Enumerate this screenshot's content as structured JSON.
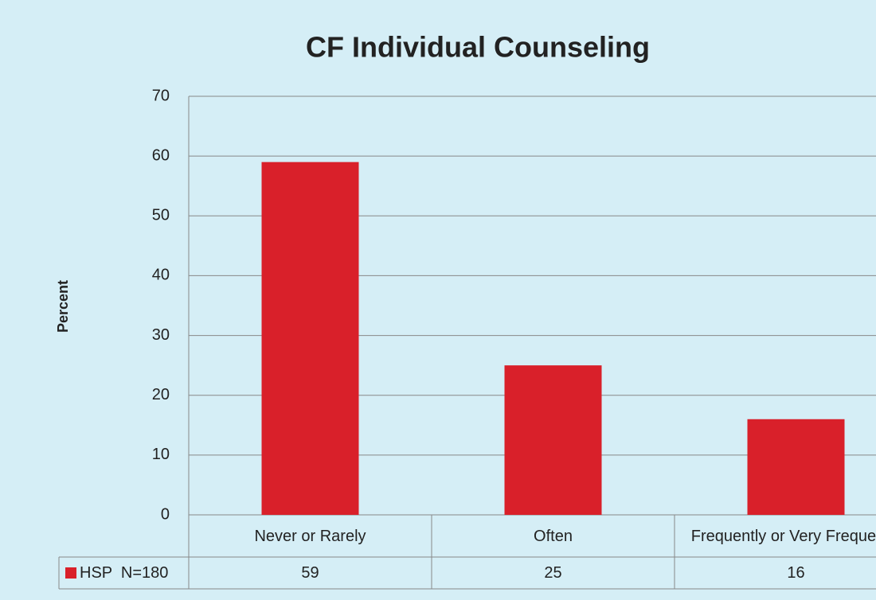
{
  "chart_data": {
    "type": "bar",
    "title": "CF Individual Counseling",
    "y_label": "Percent",
    "categories": [
      "Never or Rarely",
      "Often",
      "Frequently or Very Frequently"
    ],
    "series": [
      {
        "name": "HSP  N=180",
        "color": "#d9202a",
        "values": [
          59,
          25,
          16
        ]
      }
    ],
    "ylim": [
      0,
      70
    ],
    "yticks": [
      0,
      10,
      20,
      30,
      40,
      50,
      60,
      70
    ],
    "grid": true,
    "data_table": true
  }
}
